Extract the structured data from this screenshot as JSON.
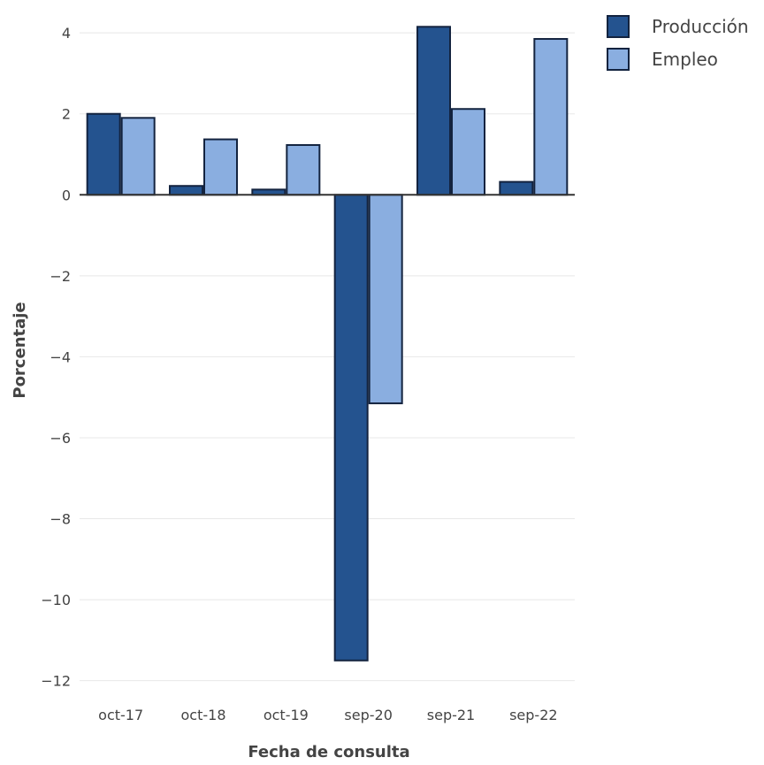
{
  "chart_data": {
    "type": "bar",
    "title": "",
    "xlabel": "Fecha de consulta",
    "ylabel": "Porcentaje",
    "categories": [
      "oct-17",
      "oct-18",
      "oct-19",
      "sep-20",
      "sep-21",
      "sep-22"
    ],
    "series": [
      {
        "name": "Producción",
        "values": [
          2.0,
          0.22,
          0.13,
          -11.5,
          4.15,
          0.32
        ],
        "color": "#24538f"
      },
      {
        "name": "Empleo",
        "values": [
          1.9,
          1.37,
          1.23,
          -5.15,
          2.12,
          3.85
        ],
        "color": "#8aaee0"
      }
    ],
    "ylim": [
      -12.4,
      4.2
    ],
    "yticks": [
      4,
      2,
      0,
      -2,
      -4,
      -6,
      -8,
      -10,
      -12
    ],
    "ytick_labels": [
      "4",
      "2",
      "0",
      "−2",
      "−4",
      "−6",
      "−8",
      "−10",
      "−12"
    ],
    "grid": true,
    "legend_position": "top-right",
    "colors": {
      "bar_outline": "#13233f",
      "grid": "#e8e8e8",
      "zero_line": "#333333"
    }
  }
}
